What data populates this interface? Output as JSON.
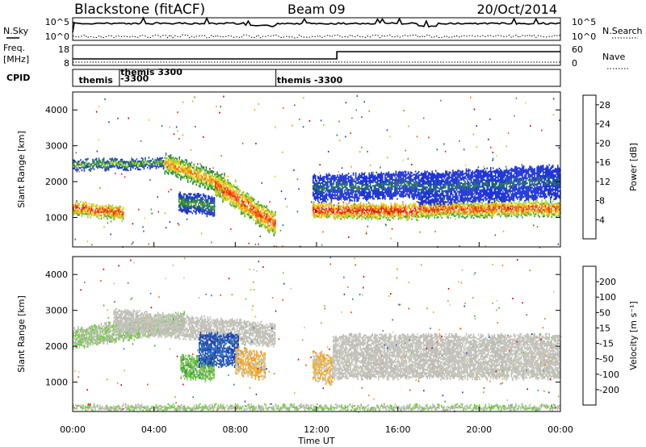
{
  "header": {
    "station": "Blackstone (fitACF)",
    "beam": "Beam 09",
    "date": "20/Oct/2014"
  },
  "panels": {
    "nsky": {
      "label": "N.Sky",
      "right_label": "N.Search",
      "ytick_top": "10^5",
      "ytick_bottom": "10^0"
    },
    "freq": {
      "label": "Freq.",
      "unit": "[MHz]",
      "ytick_top": "18",
      "ytick_bottom": "8",
      "right_label": "Nave",
      "rtick_top": "60",
      "rtick_bottom": "0"
    },
    "cpid": {
      "label": "CPID",
      "entries": [
        {
          "text": "themis",
          "t": 0.3
        },
        {
          "text": "themis 3300",
          "t": 2.35
        },
        {
          "text": "-3300",
          "t": 2.35
        },
        {
          "text": "themis -3300",
          "t": 10.05
        }
      ]
    }
  },
  "colors": {
    "power": [
      "#1f35d6",
      "#1e5aa0",
      "#2f7a3c",
      "#3fa03a",
      "#9acd32",
      "#e8d81c",
      "#f7a21b",
      "#f36a12",
      "#e8280f",
      "#cc0000"
    ],
    "velocity": [
      "#e00000",
      "#f04a00",
      "#f27f10",
      "#f6ad29",
      "#c8c8c0",
      "#bcbcb4",
      "#6dcc3a",
      "#3f9f4a",
      "#2d6fc2",
      "#1e3ea8"
    ]
  },
  "chart_data": [
    {
      "type": "heatmap",
      "name": "power",
      "ylabel": "Slant Range [km]",
      "yticks": [
        "1000",
        "2000",
        "3000",
        "4000"
      ],
      "ylim": [
        180,
        4500
      ],
      "xlim": [
        0,
        24
      ],
      "colorbar": {
        "label": "Power [dB]",
        "ticks": [
          "4",
          "8",
          "12",
          "16",
          "20",
          "24",
          "28"
        ],
        "range": [
          0,
          30
        ]
      },
      "bands": [
        {
          "t_start": 0.0,
          "t_end": 2.5,
          "range_start": 1250,
          "range_end": 1100,
          "width": 350,
          "value": 26
        },
        {
          "t_start": 0.0,
          "t_end": 4.5,
          "range_start": 2450,
          "range_end": 2500,
          "width": 250,
          "value": 14
        },
        {
          "t_start": 4.5,
          "t_end": 7.5,
          "range_start": 2500,
          "range_end": 1900,
          "width": 500,
          "value": 22
        },
        {
          "t_start": 5.2,
          "t_end": 7.0,
          "range_start": 1400,
          "range_end": 1300,
          "width": 500,
          "value": 11
        },
        {
          "t_start": 7.0,
          "t_end": 10.0,
          "range_start": 1900,
          "range_end": 800,
          "width": 600,
          "value": 25
        },
        {
          "t_start": 11.8,
          "t_end": 17.0,
          "range_start": 1200,
          "range_end": 1150,
          "width": 400,
          "value": 27
        },
        {
          "t_start": 11.8,
          "t_end": 17.0,
          "range_start": 1800,
          "range_end": 1900,
          "width": 700,
          "value": 7
        },
        {
          "t_start": 17.0,
          "t_end": 24.0,
          "range_start": 1200,
          "range_end": 1250,
          "width": 400,
          "value": 25
        },
        {
          "t_start": 17.0,
          "t_end": 24.0,
          "range_start": 1800,
          "range_end": 2000,
          "width": 900,
          "value": 6
        }
      ]
    },
    {
      "type": "heatmap",
      "name": "velocity",
      "ylabel": "Slant Range [km]",
      "xlabel": "Time UT",
      "yticks": [
        "1000",
        "2000",
        "3000",
        "4000"
      ],
      "xticks": [
        "00:00",
        "04:00",
        "08:00",
        "12:00",
        "16:00",
        "20:00",
        "00:00"
      ],
      "ylim": [
        180,
        4500
      ],
      "xlim": [
        0,
        24
      ],
      "colorbar": {
        "label": "Velocity [m s⁻¹]",
        "ticks": [
          "200",
          "100",
          "50",
          "15",
          "-15",
          "-50",
          "-100",
          "-200"
        ],
        "range": [
          -250,
          250
        ]
      },
      "bands": [
        {
          "t_start": 0.0,
          "t_end": 5.5,
          "range_start": 2200,
          "range_end": 2650,
          "width": 500,
          "value": -40
        },
        {
          "t_start": 2.0,
          "t_end": 10.0,
          "range_start": 2700,
          "range_end": 2300,
          "width": 600,
          "value": 0
        },
        {
          "t_start": 5.3,
          "t_end": 7.0,
          "range_start": 1400,
          "range_end": 1350,
          "width": 600,
          "value": -80
        },
        {
          "t_start": 6.2,
          "t_end": 8.2,
          "range_start": 1900,
          "range_end": 1900,
          "width": 900,
          "value": -200
        },
        {
          "t_start": 8.0,
          "t_end": 9.5,
          "range_start": 1600,
          "range_end": 1400,
          "width": 700,
          "value": 60
        },
        {
          "t_start": 11.8,
          "t_end": 12.8,
          "range_start": 1500,
          "range_end": 1300,
          "width": 800,
          "value": 60
        },
        {
          "t_start": 12.8,
          "t_end": 24.0,
          "range_start": 1700,
          "range_end": 1700,
          "width": 1200,
          "value": 0
        },
        {
          "t_start": 0.0,
          "t_end": 24.0,
          "range_start": 280,
          "range_end": 280,
          "width": 120,
          "value": -40
        }
      ]
    }
  ]
}
